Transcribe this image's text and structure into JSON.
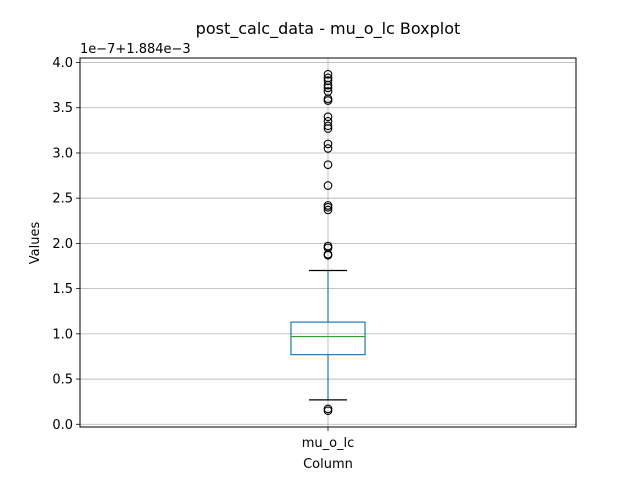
{
  "chart_data": {
    "type": "boxplot",
    "title": "post_calc_data - mu_o_lc Boxplot",
    "xlabel": "Column",
    "ylabel": "Values",
    "offset_label": "1e−7+1.884e−3",
    "categories": [
      "mu_o_lc"
    ],
    "ylim": [
      -0.03,
      4.05
    ],
    "yticks": [
      0.0,
      0.5,
      1.0,
      1.5,
      2.0,
      2.5,
      3.0,
      3.5,
      4.0
    ],
    "ytick_labels": [
      "0.0",
      "0.5",
      "1.0",
      "1.5",
      "2.0",
      "2.5",
      "3.0",
      "3.5",
      "4.0"
    ],
    "grid": true,
    "box": {
      "whisker_low": 0.27,
      "q1": 0.77,
      "median": 0.97,
      "q3": 1.13,
      "whisker_high": 1.7
    },
    "outliers": [
      0.15,
      0.17,
      1.87,
      1.88,
      1.95,
      1.97,
      2.37,
      2.4,
      2.42,
      2.64,
      2.87,
      3.05,
      3.1,
      3.27,
      3.3,
      3.35,
      3.4,
      3.58,
      3.6,
      3.68,
      3.72,
      3.75,
      3.8,
      3.83,
      3.87
    ],
    "colors": {
      "box": "#1f77b4",
      "median": "#2ca02c",
      "whisker": "#1f77b4",
      "cap": "#000000",
      "outlier": "#000000",
      "grid": "#b0b0b0"
    }
  }
}
